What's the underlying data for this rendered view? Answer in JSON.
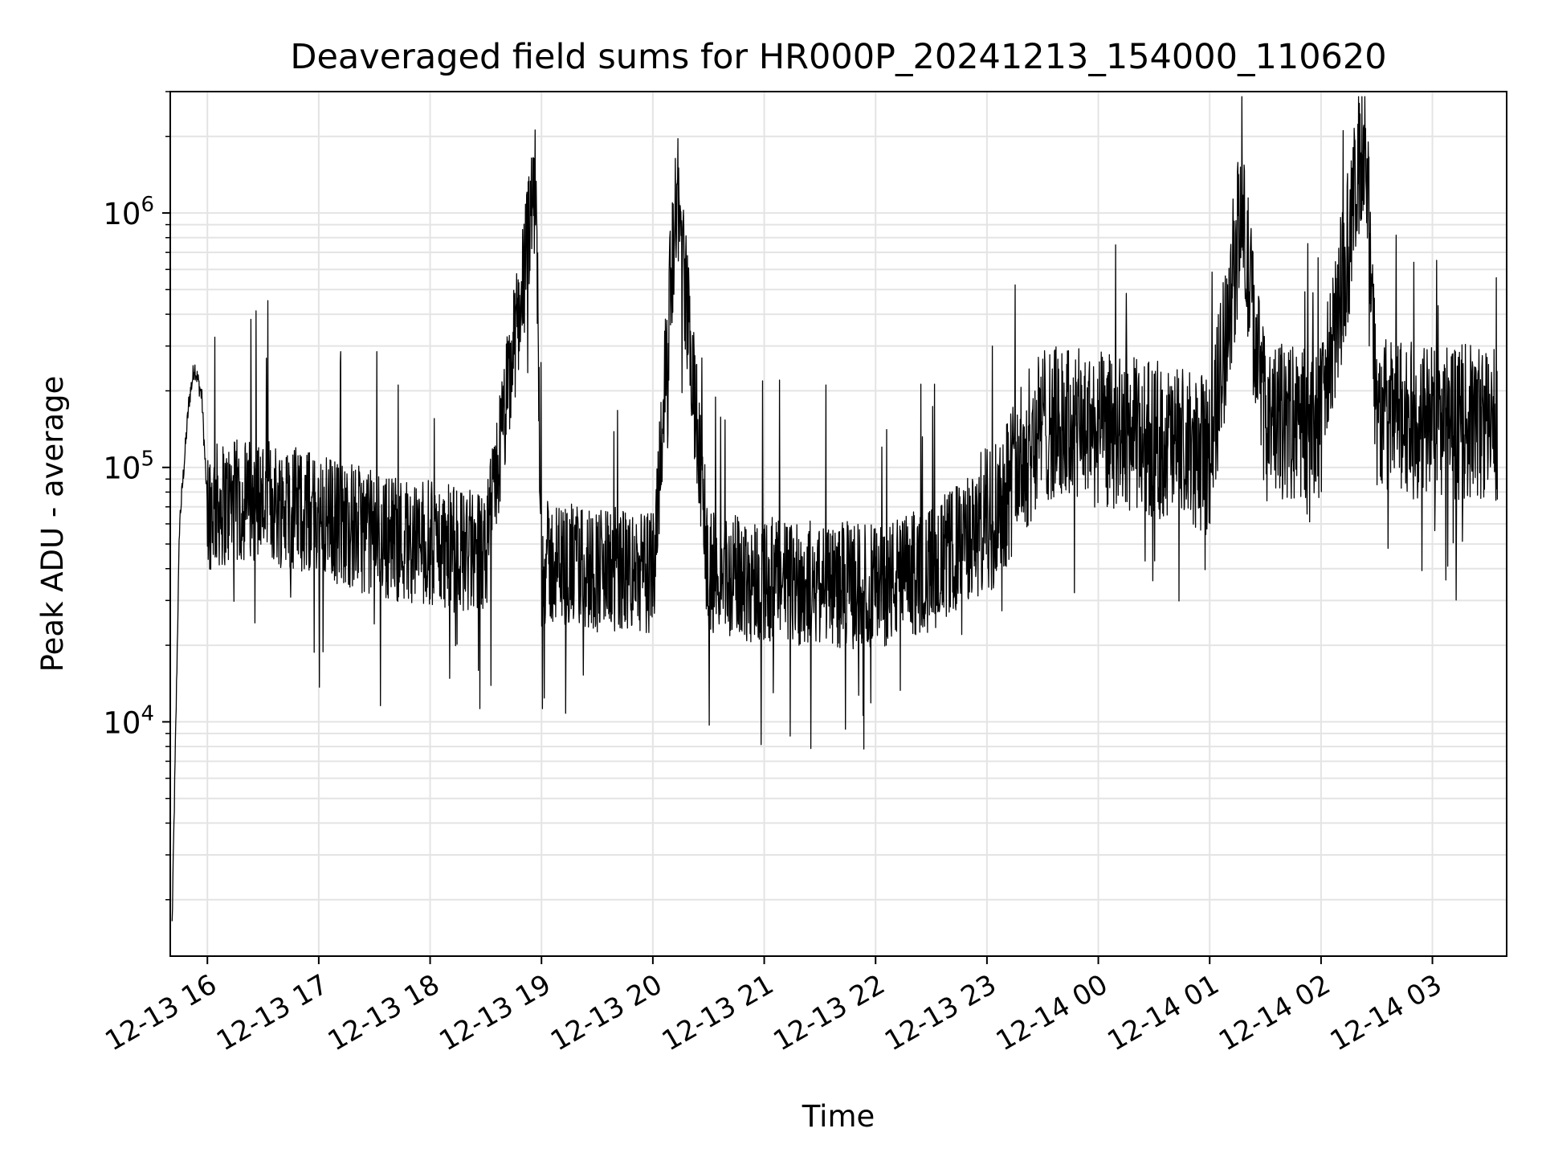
{
  "chart_data": {
    "type": "line",
    "title": "Deaveraged field sums for HR000P_20241213_154000_110620",
    "xlabel": "Time",
    "ylabel": "Peak ADU - average",
    "x_scale": "time",
    "y_scale": "log",
    "xlim": [
      "2024-12-13 15:40",
      "2024-12-14 03:40"
    ],
    "ylim": [
      1200,
      3000000
    ],
    "grid": true,
    "legend": "none",
    "line_color": "#000000",
    "x_ticks": [
      "12-13 16",
      "12-13 17",
      "12-13 18",
      "12-13 19",
      "12-13 20",
      "12-13 21",
      "12-13 22",
      "12-13 23",
      "12-14 00",
      "12-14 01",
      "12-14 02",
      "12-14 03"
    ],
    "y_ticks": [
      {
        "value": 10000,
        "base": "10",
        "exp": "4"
      },
      {
        "value": 100000,
        "base": "10",
        "exp": "5"
      },
      {
        "value": 1000000,
        "base": "10",
        "exp": "6"
      }
    ],
    "series": [
      {
        "x": [
          "2024-12-13 15:41",
          "2024-12-13 15:45",
          "2024-12-13 15:50",
          "2024-12-13 15:53",
          "2024-12-13 15:57",
          "2024-12-13 16:00",
          "2024-12-13 16:30",
          "2024-12-13 17:00",
          "2024-12-13 17:30",
          "2024-12-13 18:00",
          "2024-12-13 18:30",
          "2024-12-13 18:57",
          "2024-12-13 19:00",
          "2024-12-13 19:30",
          "2024-12-13 20:00",
          "2024-12-13 20:13",
          "2024-12-13 20:30",
          "2024-12-13 21:00",
          "2024-12-13 21:30",
          "2024-12-13 22:00",
          "2024-12-13 22:30",
          "2024-12-13 23:00",
          "2024-12-13 23:30",
          "2024-12-14 00:00",
          "2024-12-14 00:30",
          "2024-12-14 01:00",
          "2024-12-14 01:17",
          "2024-12-14 01:30",
          "2024-12-14 02:00",
          "2024-12-14 02:24",
          "2024-12-14 02:30",
          "2024-12-14 03:00",
          "2024-12-14 03:35"
        ],
        "y": [
          1600,
          60000,
          180000,
          250000,
          190000,
          70000,
          75000,
          65000,
          55000,
          50000,
          45000,
          1300000,
          42000,
          40000,
          38000,
          1300000,
          38000,
          36000,
          35000,
          34000,
          40000,
          60000,
          150000,
          140000,
          130000,
          110000,
          1000000,
          150000,
          150000,
          2150000,
          160000,
          150000,
          150000
        ]
      }
    ]
  }
}
